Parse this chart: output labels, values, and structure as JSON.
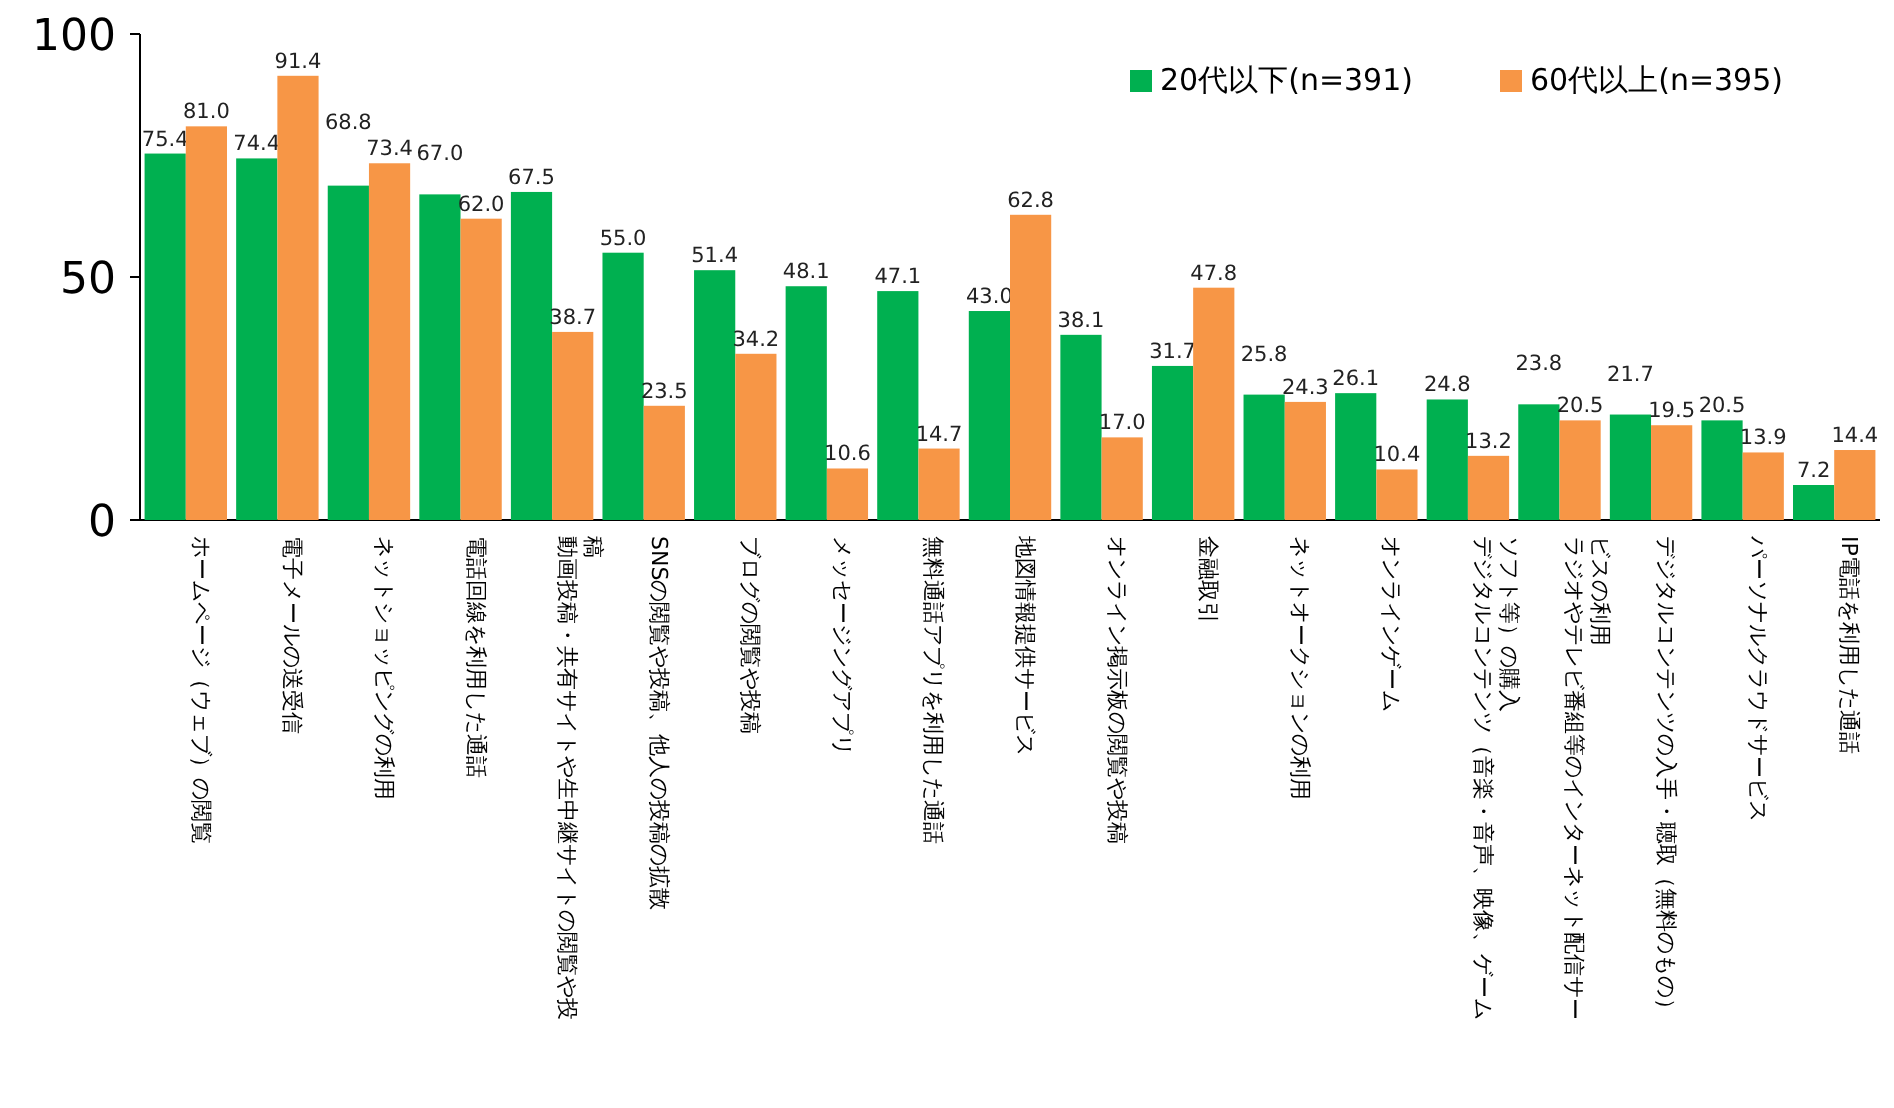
{
  "chart_data": {
    "type": "bar",
    "categories": [
      "ホームページ（ウェブ）の閲覧",
      "電子メールの送受信",
      "ネットショッピングの利用",
      "電話回線を利用した通話",
      "動画投稿・共有サイトや生中継サイトの閲覧や投稿",
      "SNSの閲覧や投稿、他人の投稿の拡散",
      "ブログの閲覧や投稿",
      "メッセージングアプリ",
      "無料通話アプリを利用した通話",
      "地図情報提供サービス",
      "オンライン掲示板の閲覧や投稿",
      "金融取引",
      "ネットオークションの利用",
      "オンラインゲーム",
      "デジタルコンテンツ（音楽・音声、映像、ゲームソフト等）の購入",
      "ラジオやテレビ番組等のインターネット配信サービスの利用",
      "デジタルコンテンツの入手・聴取（無料のもの）",
      "パーソナルクラウドサービス",
      "IP電話を利用した通話"
    ],
    "series": [
      {
        "name": "20代以下(n=391)",
        "color": "#00b050",
        "values": [
          75.4,
          74.4,
          68.8,
          67.0,
          67.5,
          55.0,
          51.4,
          48.1,
          47.1,
          43.0,
          38.1,
          31.7,
          25.8,
          26.1,
          24.8,
          23.8,
          21.7,
          20.5,
          7.2
        ],
        "value_labels": [
          "75.4",
          "74.4",
          "68.8",
          "67.0",
          "67.5",
          "55.0",
          "51.4",
          "48.1",
          "47.1",
          "43.0",
          "38.1",
          "31.7",
          "25.8",
          "26.1",
          "24.8",
          "23.8",
          "21.7",
          "20.5",
          "7.2"
        ]
      },
      {
        "name": "60代以上(n=395)",
        "color": "#f79646",
        "values": [
          81.0,
          91.4,
          73.4,
          62.0,
          38.7,
          23.5,
          34.2,
          10.6,
          14.7,
          62.8,
          17.0,
          47.8,
          24.3,
          10.4,
          13.2,
          20.5,
          19.5,
          13.9,
          14.4
        ],
        "value_labels": [
          "81.0",
          "91.4",
          "73.4",
          "62.0",
          "38.7",
          "23.5",
          "34.2",
          "10.6",
          "14.7",
          "62.8",
          "17.0",
          "47.8",
          "24.3",
          "10.4",
          "13.2",
          "20.5",
          "19.5",
          "13.9",
          "14.4"
        ]
      }
    ],
    "ylim": [
      0,
      100
    ],
    "yticks": [
      0,
      50,
      100
    ],
    "grid": false,
    "legend": "top right"
  }
}
